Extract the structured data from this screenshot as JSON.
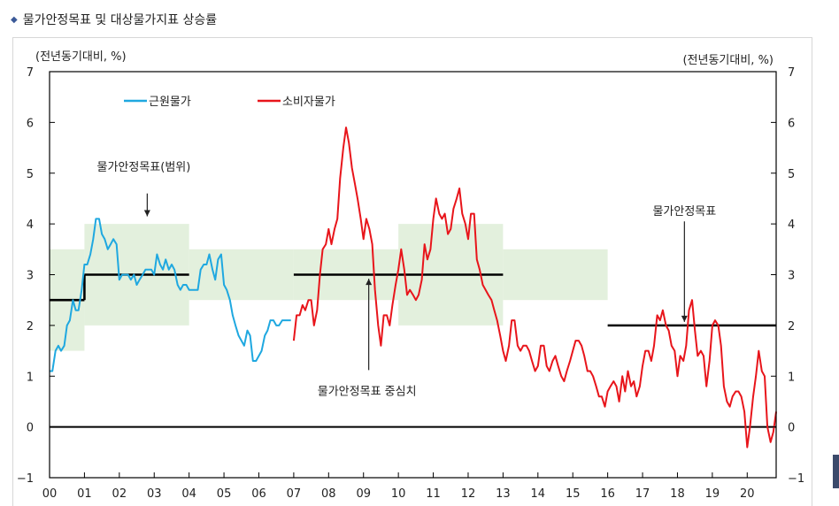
{
  "page_title": "물가안정목표 및 대상물가지표 상승률",
  "bullet_icon": "diamond-bullet-icon",
  "chart_data": {
    "type": "line",
    "title": "",
    "left_unit_label": "(전년동기대비, %)",
    "right_unit_label": "(전년동기대비, %)",
    "x_domain": [
      2000.0,
      2020.83
    ],
    "ylim": [
      -1,
      7
    ],
    "y_ticks": [
      -1,
      0,
      1,
      2,
      3,
      4,
      5,
      6,
      7
    ],
    "y_tick_labels": [
      "−1",
      "0",
      "1",
      "2",
      "3",
      "4",
      "5",
      "6",
      "7"
    ],
    "x_ticks": [
      2000,
      2001,
      2002,
      2003,
      2004,
      2005,
      2006,
      2007,
      2008,
      2009,
      2010,
      2011,
      2012,
      2013,
      2014,
      2015,
      2016,
      2017,
      2018,
      2019,
      2020
    ],
    "x_tick_labels": [
      "00",
      "01",
      "02",
      "03",
      "04",
      "05",
      "06",
      "07",
      "08",
      "09",
      "10",
      "11",
      "12",
      "13",
      "14",
      "15",
      "16",
      "17",
      "18",
      "19",
      "20"
    ],
    "colors": {
      "core": "#1fa8e0",
      "cpi": "#e8151b",
      "target_band": "#e3f0dd",
      "target_line": "#000000",
      "zero_line": "#000000"
    },
    "legend": [
      {
        "name": "근원물가",
        "color": "#1fa8e0"
      },
      {
        "name": "소비자물가",
        "color": "#e8151b"
      }
    ],
    "target_bands": [
      {
        "x0": 2000.0,
        "x1": 2001.0,
        "y0": 1.5,
        "y1": 3.5
      },
      {
        "x0": 2001.0,
        "x1": 2004.0,
        "y0": 2.0,
        "y1": 4.0
      },
      {
        "x0": 2004.0,
        "x1": 2007.0,
        "y0": 2.5,
        "y1": 3.5
      },
      {
        "x0": 2007.0,
        "x1": 2010.0,
        "y0": 2.5,
        "y1": 3.5
      },
      {
        "x0": 2010.0,
        "x1": 2013.0,
        "y0": 2.0,
        "y1": 4.0
      },
      {
        "x0": 2013.0,
        "x1": 2016.0,
        "y0": 2.5,
        "y1": 3.5
      }
    ],
    "target_lines": [
      {
        "x0": 2000.0,
        "x1": 2001.0,
        "y": 2.5
      },
      {
        "x0": 2001.0,
        "x1": 2004.0,
        "y": 3.0
      },
      {
        "x0": 2007.0,
        "x1": 2013.0,
        "y": 3.0
      },
      {
        "x0": 2016.0,
        "x1": 2020.83,
        "y": 2.0
      }
    ],
    "annotations": [
      {
        "text": "물가안정목표(범위)",
        "x": 2002.7,
        "y": 5.05,
        "arrow_to": [
          2002.8,
          4.15
        ],
        "arrow_from": [
          2002.8,
          4.6
        ]
      },
      {
        "text": "물가안정목표 중심치",
        "x": 2009.1,
        "y": 0.63,
        "arrow_to": [
          2009.15,
          2.92
        ],
        "arrow_from": [
          2009.15,
          1.12
        ]
      },
      {
        "text": "물가안정목표",
        "x": 2018.2,
        "y": 4.18,
        "arrow_to": [
          2018.2,
          2.07
        ],
        "arrow_from": [
          2018.2,
          4.05
        ]
      }
    ],
    "series": [
      {
        "name": "근원물가",
        "x": [
          2000.0,
          2000.08,
          2000.17,
          2000.25,
          2000.33,
          2000.42,
          2000.5,
          2000.58,
          2000.67,
          2000.75,
          2000.83,
          2000.92,
          2001.0,
          2001.08,
          2001.17,
          2001.25,
          2001.33,
          2001.42,
          2001.5,
          2001.58,
          2001.67,
          2001.75,
          2001.83,
          2001.92,
          2002.0,
          2002.08,
          2002.17,
          2002.25,
          2002.33,
          2002.42,
          2002.5,
          2002.58,
          2002.67,
          2002.75,
          2002.83,
          2002.92,
          2003.0,
          2003.08,
          2003.17,
          2003.25,
          2003.33,
          2003.42,
          2003.5,
          2003.58,
          2003.67,
          2003.75,
          2003.83,
          2003.92,
          2004.0,
          2004.08,
          2004.17,
          2004.25,
          2004.33,
          2004.42,
          2004.5,
          2004.58,
          2004.67,
          2004.75,
          2004.83,
          2004.92,
          2005.0,
          2005.08,
          2005.17,
          2005.25,
          2005.33,
          2005.42,
          2005.5,
          2005.58,
          2005.67,
          2005.75,
          2005.83,
          2005.92,
          2006.0,
          2006.08,
          2006.17,
          2006.25,
          2006.33,
          2006.42,
          2006.5,
          2006.58,
          2006.67,
          2006.75,
          2006.83,
          2006.92
        ],
        "values": [
          1.1,
          1.1,
          1.5,
          1.6,
          1.5,
          1.6,
          2.0,
          2.1,
          2.5,
          2.3,
          2.3,
          2.7,
          3.2,
          3.2,
          3.4,
          3.7,
          4.1,
          4.1,
          3.8,
          3.7,
          3.5,
          3.6,
          3.7,
          3.6,
          2.9,
          3.0,
          3.0,
          3.0,
          2.9,
          3.0,
          2.8,
          2.9,
          3.0,
          3.1,
          3.1,
          3.1,
          3.0,
          3.4,
          3.2,
          3.1,
          3.3,
          3.1,
          3.2,
          3.1,
          2.8,
          2.7,
          2.8,
          2.8,
          2.7,
          2.7,
          2.7,
          2.7,
          3.1,
          3.2,
          3.2,
          3.4,
          3.1,
          2.9,
          3.3,
          3.4,
          2.8,
          2.7,
          2.5,
          2.2,
          2.0,
          1.8,
          1.7,
          1.6,
          1.9,
          1.8,
          1.3,
          1.3,
          1.4,
          1.5,
          1.8,
          1.9,
          2.1,
          2.1,
          2.0,
          2.0,
          2.1,
          2.1,
          2.1,
          2.1
        ]
      },
      {
        "name": "소비자물가",
        "x": [
          2007.0,
          2007.08,
          2007.17,
          2007.25,
          2007.33,
          2007.42,
          2007.5,
          2007.58,
          2007.67,
          2007.75,
          2007.83,
          2007.92,
          2008.0,
          2008.08,
          2008.17,
          2008.25,
          2008.33,
          2008.42,
          2008.5,
          2008.58,
          2008.67,
          2008.75,
          2008.83,
          2008.92,
          2009.0,
          2009.08,
          2009.17,
          2009.25,
          2009.33,
          2009.42,
          2009.5,
          2009.58,
          2009.67,
          2009.75,
          2009.83,
          2009.92,
          2010.0,
          2010.08,
          2010.17,
          2010.25,
          2010.33,
          2010.42,
          2010.5,
          2010.58,
          2010.67,
          2010.75,
          2010.83,
          2010.92,
          2011.0,
          2011.08,
          2011.17,
          2011.25,
          2011.33,
          2011.42,
          2011.5,
          2011.58,
          2011.67,
          2011.75,
          2011.83,
          2011.92,
          2012.0,
          2012.08,
          2012.17,
          2012.25,
          2012.33,
          2012.42,
          2012.5,
          2012.58,
          2012.67,
          2012.75,
          2012.83,
          2012.92,
          2013.0,
          2013.08,
          2013.17,
          2013.25,
          2013.33,
          2013.42,
          2013.5,
          2013.58,
          2013.67,
          2013.75,
          2013.83,
          2013.92,
          2014.0,
          2014.08,
          2014.17,
          2014.25,
          2014.33,
          2014.42,
          2014.5,
          2014.58,
          2014.67,
          2014.75,
          2014.83,
          2014.92,
          2015.0,
          2015.08,
          2015.17,
          2015.25,
          2015.33,
          2015.42,
          2015.5,
          2015.58,
          2015.67,
          2015.75,
          2015.83,
          2015.92,
          2016.0,
          2016.08,
          2016.17,
          2016.25,
          2016.33,
          2016.42,
          2016.5,
          2016.58,
          2016.67,
          2016.75,
          2016.83,
          2016.92,
          2017.0,
          2017.08,
          2017.17,
          2017.25,
          2017.33,
          2017.42,
          2017.5,
          2017.58,
          2017.67,
          2017.75,
          2017.83,
          2017.92,
          2018.0,
          2018.08,
          2018.17,
          2018.25,
          2018.33,
          2018.42,
          2018.5,
          2018.58,
          2018.67,
          2018.75,
          2018.83,
          2018.92,
          2019.0,
          2019.08,
          2019.17,
          2019.25,
          2019.33,
          2019.42,
          2019.5,
          2019.58,
          2019.67,
          2019.75,
          2019.83,
          2019.92,
          2020.0,
          2020.08,
          2020.17,
          2020.25,
          2020.33,
          2020.42,
          2020.5,
          2020.58,
          2020.67,
          2020.75,
          2020.83
        ],
        "values": [
          1.7,
          2.2,
          2.2,
          2.4,
          2.3,
          2.5,
          2.5,
          2.0,
          2.3,
          3.0,
          3.5,
          3.6,
          3.9,
          3.6,
          3.9,
          4.1,
          4.9,
          5.5,
          5.9,
          5.6,
          5.1,
          4.8,
          4.5,
          4.1,
          3.7,
          4.1,
          3.9,
          3.6,
          2.7,
          2.0,
          1.6,
          2.2,
          2.2,
          2.0,
          2.4,
          2.8,
          3.1,
          3.5,
          3.1,
          2.6,
          2.7,
          2.6,
          2.5,
          2.6,
          2.9,
          3.6,
          3.3,
          3.5,
          4.1,
          4.5,
          4.2,
          4.1,
          4.2,
          3.8,
          3.9,
          4.3,
          4.5,
          4.7,
          4.2,
          4.0,
          3.7,
          4.2,
          4.2,
          3.3,
          3.1,
          2.8,
          2.7,
          2.6,
          2.5,
          2.3,
          2.1,
          1.8,
          1.5,
          1.3,
          1.6,
          2.1,
          2.1,
          1.6,
          1.5,
          1.6,
          1.6,
          1.5,
          1.3,
          1.1,
          1.2,
          1.6,
          1.6,
          1.2,
          1.1,
          1.3,
          1.4,
          1.2,
          1.0,
          0.9,
          1.1,
          1.3,
          1.5,
          1.7,
          1.7,
          1.6,
          1.4,
          1.1,
          1.1,
          1.0,
          0.8,
          0.6,
          0.6,
          0.4,
          0.7,
          0.8,
          0.9,
          0.8,
          0.5,
          1.0,
          0.7,
          1.1,
          0.8,
          0.9,
          0.6,
          0.8,
          1.2,
          1.5,
          1.5,
          1.3,
          1.6,
          2.2,
          2.1,
          2.3,
          2.0,
          1.9,
          1.6,
          1.5,
          1.0,
          1.4,
          1.3,
          1.6,
          2.3,
          2.5,
          1.9,
          1.4,
          1.5,
          1.4,
          0.8,
          1.3,
          2.0,
          2.1,
          2.0,
          1.6,
          0.8,
          0.5,
          0.4,
          0.6,
          0.7,
          0.7,
          0.6,
          0.3,
          -0.4,
          0.0,
          0.6,
          1.0,
          1.5,
          1.1,
          1.0,
          0.0,
          -0.3,
          -0.1,
          0.3
        ]
      }
    ]
  }
}
